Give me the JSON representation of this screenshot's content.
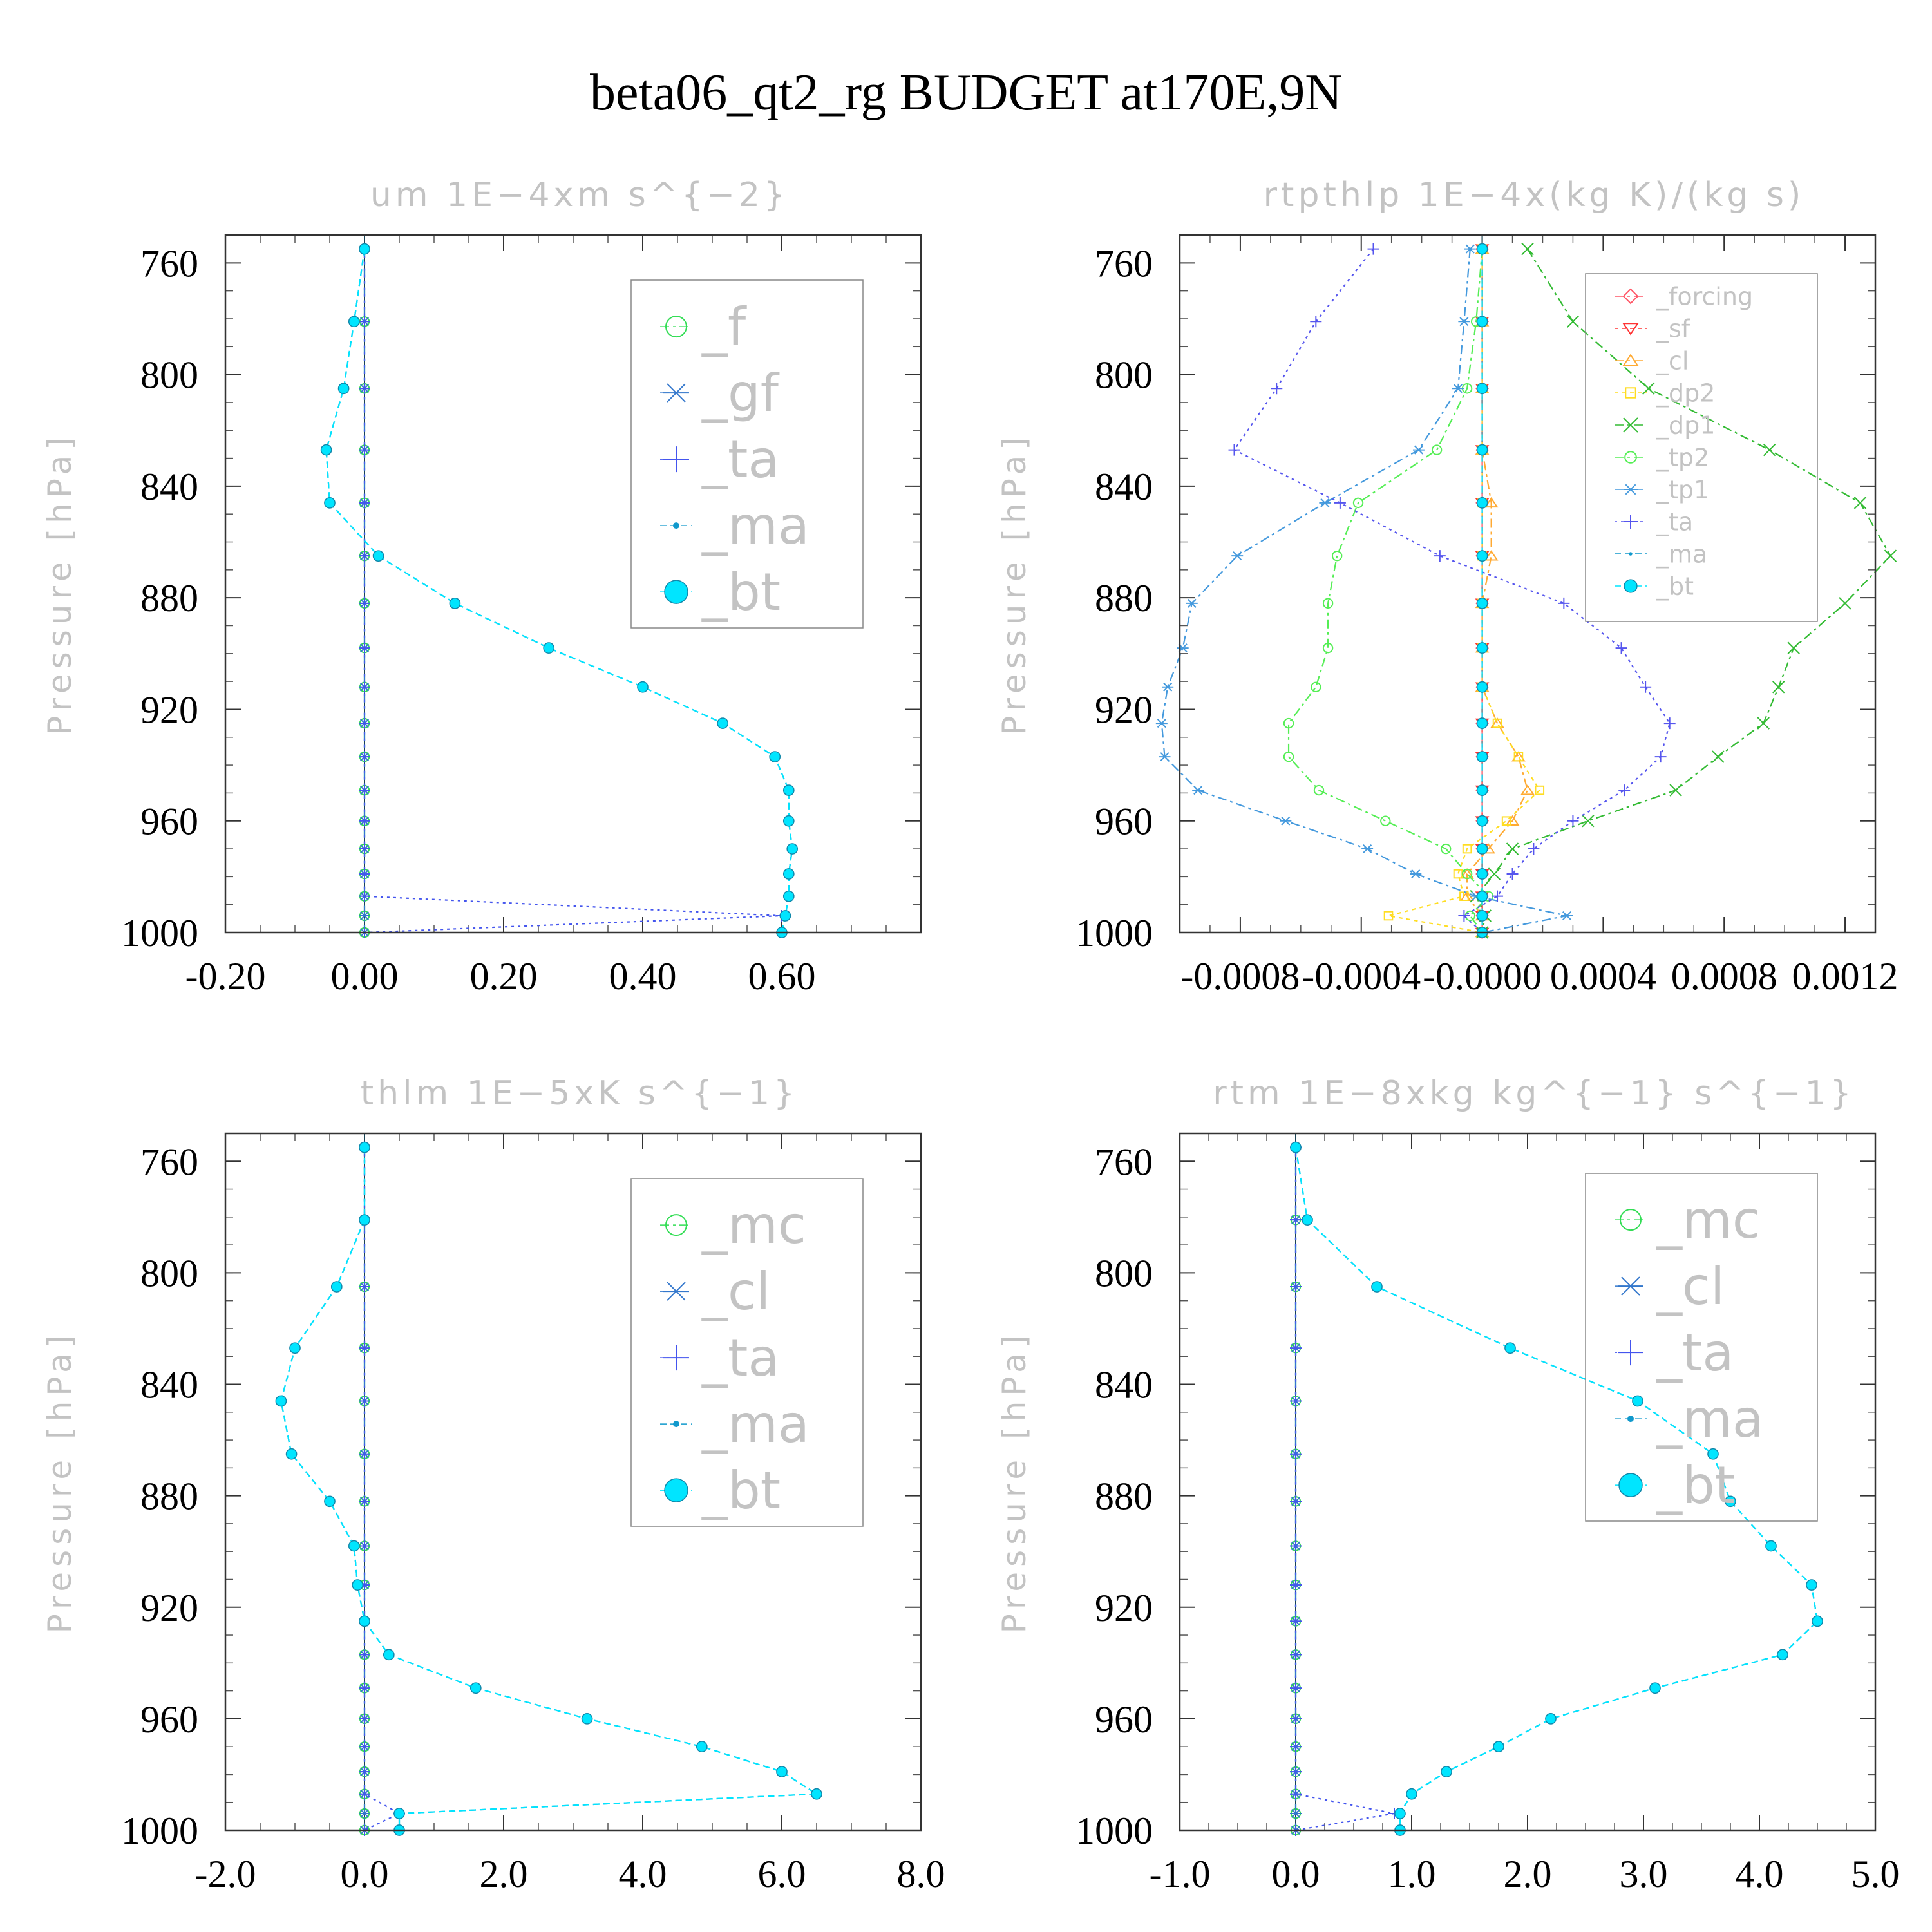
{
  "title": "beta06_qt2_rg  BUDGET at170E,9N",
  "ylabel": "Pressure [hPa]",
  "chart_data": [
    {
      "type": "line",
      "title": "um  1E−4xm s^{−2}",
      "xlim": [
        -0.2,
        0.8
      ],
      "ylim": [
        1000,
        750
      ],
      "xticks": [
        -0.2,
        0.0,
        0.2,
        0.4,
        0.6
      ],
      "xtick_labels": [
        "-0.20",
        "0.00",
        "0.20",
        "0.40",
        "0.60"
      ],
      "yticks": [
        760,
        800,
        840,
        880,
        920,
        960,
        1000
      ],
      "ytick_labels": [
        "760",
        "800",
        "840",
        "880",
        "920",
        "960",
        "1000"
      ],
      "grid": false,
      "legend": "top-right",
      "pressure": [
        755,
        781,
        805,
        827,
        846,
        865,
        882,
        898,
        912,
        925,
        937,
        949,
        960,
        970,
        979,
        987,
        994,
        1000
      ],
      "series": [
        {
          "name": "_f",
          "color": "#33dd55",
          "marker": "circle-open",
          "dash": "14,6,4,6",
          "values": [
            0,
            0,
            0,
            0,
            0,
            0,
            0,
            0,
            0,
            0,
            0,
            0,
            0,
            0,
            0,
            0,
            0,
            0
          ]
        },
        {
          "name": "_gf",
          "color": "#3377cc",
          "marker": "star",
          "dash": "14,6,4,6",
          "values": [
            0,
            0,
            0,
            0,
            0,
            0,
            0,
            0,
            0,
            0,
            0,
            0,
            0,
            0,
            0,
            0,
            0,
            0
          ]
        },
        {
          "name": "_ta",
          "color": "#4455ee",
          "marker": "plus",
          "dash": "4,6",
          "values": [
            0,
            0,
            0,
            0,
            0,
            0,
            0,
            0,
            0,
            0,
            0,
            0,
            0,
            0,
            0,
            0,
            0.6,
            0
          ]
        },
        {
          "name": "_ma",
          "color": "#1199cc",
          "marker": "dot",
          "dash": "10,6",
          "values": [
            0,
            -0.015,
            -0.03,
            -0.055,
            -0.05,
            0.02,
            0.13,
            0.265,
            0.4,
            0.515,
            0.59,
            0.61,
            0.61,
            0.615,
            0.61,
            0.61,
            0.605,
            0.6
          ]
        },
        {
          "name": "_bt",
          "color": "#00e5ff",
          "marker": "filled-circle",
          "dash": "10,6",
          "values": [
            0,
            -0.015,
            -0.03,
            -0.055,
            -0.05,
            0.02,
            0.13,
            0.265,
            0.4,
            0.515,
            0.59,
            0.61,
            0.61,
            0.615,
            0.61,
            0.61,
            0.605,
            0.6
          ]
        }
      ]
    },
    {
      "type": "line",
      "title": "rtpthlp  1E−4x(kg K)/(kg s)",
      "xlim": [
        -0.001,
        0.0013
      ],
      "ylim": [
        1000,
        750
      ],
      "xticks": [
        -0.0008,
        -0.0004,
        0.0,
        0.0004,
        0.0008,
        0.0012
      ],
      "xtick_labels": [
        "-0.0008",
        "-0.0004",
        "-0.0000",
        "0.0004",
        "0.0008",
        "0.0012"
      ],
      "yticks": [
        760,
        800,
        840,
        880,
        920,
        960,
        1000
      ],
      "ytick_labels": [
        "760",
        "800",
        "840",
        "880",
        "920",
        "960",
        "1000"
      ],
      "grid": false,
      "legend": "top-right",
      "pressure": [
        755,
        781,
        805,
        827,
        846,
        865,
        882,
        898,
        912,
        925,
        937,
        949,
        960,
        970,
        979,
        987,
        994,
        1000
      ],
      "series": [
        {
          "name": "_forcing",
          "color": "#ff5566",
          "marker": "diamond",
          "dash": "14,6,4,6",
          "values": [
            0,
            0,
            0,
            0,
            0,
            0,
            0,
            0,
            0,
            0,
            0,
            0,
            0,
            0,
            0,
            0,
            0,
            0
          ]
        },
        {
          "name": "_sf",
          "color": "#ff3333",
          "marker": "triangle-down",
          "dash": "6,6",
          "values": [
            0,
            0,
            0,
            0,
            0,
            0,
            0,
            0,
            0,
            0,
            0,
            0,
            0,
            0,
            0,
            0,
            0,
            0
          ]
        },
        {
          "name": "_cl",
          "color": "#ffaa33",
          "marker": "triangle-up",
          "dash": "14,6,4,6",
          "values": [
            0,
            0,
            0,
            0,
            3e-05,
            3e-05,
            0,
            0,
            0,
            5e-05,
            0.00012,
            0.00015,
            0.0001,
            2e-05,
            -5e-05,
            -5e-05,
            0,
            0
          ]
        },
        {
          "name": "_dp2",
          "color": "#ffdd22",
          "marker": "square",
          "dash": "6,6",
          "values": [
            0,
            0,
            0,
            0,
            0,
            0,
            0,
            0,
            0,
            5e-05,
            0.00012,
            0.00019,
            8e-05,
            -5e-05,
            -8e-05,
            -6e-05,
            -0.00031,
            0
          ]
        },
        {
          "name": "_dp1",
          "color": "#33bb33",
          "marker": "x",
          "dash": "14,6,4,6",
          "values": [
            0.00015,
            0.0003,
            0.00055,
            0.00095,
            0.00125,
            0.00135,
            0.0012,
            0.00103,
            0.00098,
            0.00093,
            0.00078,
            0.00064,
            0.00035,
            0.0001,
            4e-05,
            -2e-05,
            1e-05,
            0
          ]
        },
        {
          "name": "_tp2",
          "color": "#55ee55",
          "marker": "circle-open",
          "dash": "14,6,4,6",
          "values": [
            0,
            -2e-05,
            -5e-05,
            -0.00015,
            -0.00041,
            -0.00048,
            -0.00051,
            -0.00051,
            -0.00055,
            -0.00064,
            -0.00064,
            -0.00054,
            -0.00032,
            -0.00012,
            -5e-05,
            2e-05,
            -4e-05,
            0
          ]
        },
        {
          "name": "_tp1",
          "color": "#4499dd",
          "marker": "star",
          "dash": "14,6,4,6",
          "values": [
            -4e-05,
            -6e-05,
            -8e-05,
            -0.00021,
            -0.00052,
            -0.00081,
            -0.00096,
            -0.00099,
            -0.00104,
            -0.00106,
            -0.00105,
            -0.00094,
            -0.00065,
            -0.00038,
            -0.00022,
            -2e-05,
            0.00028,
            0
          ]
        },
        {
          "name": "_ta",
          "color": "#5555ee",
          "marker": "plus",
          "dash": "4,6",
          "values": [
            -0.00036,
            -0.00055,
            -0.00068,
            -0.00082,
            -0.00047,
            -0.00014,
            0.00027,
            0.00046,
            0.00054,
            0.00062,
            0.00059,
            0.00047,
            0.0003,
            0.00017,
            0.0001,
            5e-05,
            -6e-05,
            0
          ]
        },
        {
          "name": "_ma",
          "color": "#1199cc",
          "marker": "dot",
          "dash": "10,6",
          "values": [
            0,
            0,
            0,
            0,
            0,
            0,
            0,
            0,
            0,
            0,
            0,
            0,
            0,
            0,
            0,
            0,
            0,
            0
          ]
        },
        {
          "name": "_bt",
          "color": "#00e5ff",
          "marker": "filled-circle",
          "dash": "10,6",
          "values": [
            0,
            0,
            0,
            0,
            0,
            0,
            0,
            0,
            0,
            0,
            0,
            0,
            0,
            0,
            0,
            0,
            0,
            0
          ]
        }
      ]
    },
    {
      "type": "line",
      "title": "thlm  1E−5xK s^{−1}",
      "xlim": [
        -2.0,
        8.0
      ],
      "ylim": [
        1000,
        750
      ],
      "xticks": [
        -2,
        0,
        2,
        4,
        6,
        8
      ],
      "xtick_labels": [
        "-2.0",
        "0.0",
        "2.0",
        "4.0",
        "6.0",
        "8.0"
      ],
      "yticks": [
        760,
        800,
        840,
        880,
        920,
        960,
        1000
      ],
      "ytick_labels": [
        "760",
        "800",
        "840",
        "880",
        "920",
        "960",
        "1000"
      ],
      "grid": false,
      "legend": "top-right",
      "pressure": [
        755,
        781,
        805,
        827,
        846,
        865,
        882,
        898,
        912,
        925,
        937,
        949,
        960,
        970,
        979,
        987,
        994,
        1000
      ],
      "series": [
        {
          "name": "_mc",
          "color": "#33dd55",
          "marker": "circle-open",
          "dash": "14,6,4,6",
          "values": [
            0,
            0,
            0,
            0,
            0,
            0,
            0,
            0,
            0,
            0,
            0,
            0,
            0,
            0,
            0,
            0,
            0,
            0
          ]
        },
        {
          "name": "_cl",
          "color": "#3377cc",
          "marker": "star",
          "dash": "14,6,4,6",
          "values": [
            0,
            0,
            0,
            0,
            0,
            0,
            0,
            0,
            0,
            0,
            0,
            0,
            0,
            0,
            0,
            0,
            0,
            0
          ]
        },
        {
          "name": "_ta",
          "color": "#4455ee",
          "marker": "plus",
          "dash": "4,6",
          "values": [
            0,
            0,
            0,
            0,
            0,
            0,
            0,
            0,
            0,
            0,
            0,
            0,
            0,
            0,
            0,
            0,
            0.5,
            0
          ]
        },
        {
          "name": "_ma",
          "color": "#1199cc",
          "marker": "dot",
          "dash": "10,6",
          "values": [
            0,
            0,
            -0.4,
            -1.0,
            -1.2,
            -1.05,
            -0.5,
            -0.15,
            -0.1,
            0,
            0.35,
            1.6,
            3.2,
            4.85,
            6.0,
            6.5,
            0.5,
            0.5
          ]
        },
        {
          "name": "_bt",
          "color": "#00e5ff",
          "marker": "filled-circle",
          "dash": "10,6",
          "values": [
            0,
            0,
            -0.4,
            -1.0,
            -1.2,
            -1.05,
            -0.5,
            -0.15,
            -0.1,
            0,
            0.35,
            1.6,
            3.2,
            4.85,
            6.0,
            6.5,
            0.5,
            0.5
          ]
        }
      ]
    },
    {
      "type": "line",
      "title": "rtm  1E−8xkg kg^{−1} s^{−1}",
      "xlim": [
        -1.0,
        5.0
      ],
      "ylim": [
        1000,
        750
      ],
      "xticks": [
        -1,
        0,
        1,
        2,
        3,
        4,
        5
      ],
      "xtick_labels": [
        "-1.0",
        "0.0",
        "1.0",
        "2.0",
        "3.0",
        "4.0",
        "5.0"
      ],
      "yticks": [
        760,
        800,
        840,
        880,
        920,
        960,
        1000
      ],
      "ytick_labels": [
        "760",
        "800",
        "840",
        "880",
        "920",
        "960",
        "1000"
      ],
      "grid": false,
      "legend": "top-right",
      "pressure": [
        755,
        781,
        805,
        827,
        846,
        865,
        882,
        898,
        912,
        925,
        937,
        949,
        960,
        970,
        979,
        987,
        994,
        1000
      ],
      "series": [
        {
          "name": "_mc",
          "color": "#33dd55",
          "marker": "circle-open",
          "dash": "14,6,4,6",
          "values": [
            0,
            0,
            0,
            0,
            0,
            0,
            0,
            0,
            0,
            0,
            0,
            0,
            0,
            0,
            0,
            0,
            0,
            0
          ]
        },
        {
          "name": "_cl",
          "color": "#3377cc",
          "marker": "star",
          "dash": "14,6,4,6",
          "values": [
            0,
            0,
            0,
            0,
            0,
            0,
            0,
            0,
            0,
            0,
            0,
            0,
            0,
            0,
            0,
            0,
            0,
            0
          ]
        },
        {
          "name": "_ta",
          "color": "#4455ee",
          "marker": "plus",
          "dash": "4,6",
          "values": [
            0,
            0,
            0,
            0,
            0,
            0,
            0,
            0,
            0,
            0,
            0,
            0,
            0,
            0,
            0,
            0,
            0.85,
            0
          ]
        },
        {
          "name": "_ma",
          "color": "#1199cc",
          "marker": "dot",
          "dash": "10,6",
          "values": [
            0,
            0.1,
            0.7,
            1.85,
            2.95,
            3.6,
            3.75,
            4.1,
            4.45,
            4.5,
            4.2,
            3.1,
            2.2,
            1.75,
            1.3,
            1.0,
            0.9,
            0.9
          ]
        },
        {
          "name": "_bt",
          "color": "#00e5ff",
          "marker": "filled-circle",
          "dash": "10,6",
          "values": [
            0,
            0.1,
            0.7,
            1.85,
            2.95,
            3.6,
            3.75,
            4.1,
            4.45,
            4.5,
            4.2,
            3.1,
            2.2,
            1.75,
            1.3,
            1.0,
            0.9,
            0.9
          ]
        }
      ]
    }
  ]
}
